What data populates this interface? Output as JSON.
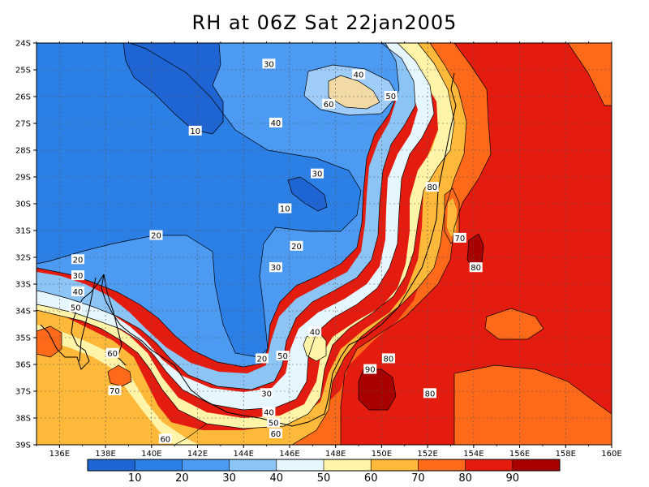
{
  "title": "RH at 06Z Sat 22jan2005",
  "map": {
    "lon_labels": [
      "136E",
      "138E",
      "140E",
      "142E",
      "144E",
      "146E",
      "148E",
      "150E",
      "152E",
      "154E",
      "156E",
      "158E",
      "160E"
    ],
    "lat_labels": [
      "24S",
      "25S",
      "26S",
      "27S",
      "28S",
      "29S",
      "30S",
      "31S",
      "32S",
      "33S",
      "34S",
      "35S",
      "36S",
      "37S",
      "38S",
      "39S"
    ],
    "contour_labels": [
      {
        "text": "10",
        "lon": 141.9,
        "lat": -27.3
      },
      {
        "text": "10",
        "lon": 145.8,
        "lat": -30.2
      },
      {
        "text": "20",
        "lon": 140.2,
        "lat": -31.2
      },
      {
        "text": "20",
        "lon": 136.8,
        "lat": -32.1
      },
      {
        "text": "20",
        "lon": 146.3,
        "lat": -31.6
      },
      {
        "text": "20",
        "lon": 144.8,
        "lat": -35.8
      },
      {
        "text": "30",
        "lon": 145.1,
        "lat": -24.8
      },
      {
        "text": "30",
        "lon": 147.2,
        "lat": -28.9
      },
      {
        "text": "30",
        "lon": 145.4,
        "lat": -32.4
      },
      {
        "text": "30",
        "lon": 136.8,
        "lat": -32.7
      },
      {
        "text": "30",
        "lon": 145.0,
        "lat": -37.1
      },
      {
        "text": "40",
        "lon": 149.0,
        "lat": -25.2
      },
      {
        "text": "40",
        "lon": 145.4,
        "lat": -27.0
      },
      {
        "text": "40",
        "lon": 136.8,
        "lat": -33.3
      },
      {
        "text": "40",
        "lon": 147.1,
        "lat": -34.8
      },
      {
        "text": "40",
        "lon": 145.1,
        "lat": -37.8
      },
      {
        "text": "50",
        "lon": 150.4,
        "lat": -26.0
      },
      {
        "text": "50",
        "lon": 136.7,
        "lat": -33.9
      },
      {
        "text": "50",
        "lon": 145.7,
        "lat": -35.7
      },
      {
        "text": "50",
        "lon": 145.3,
        "lat": -38.2
      },
      {
        "text": "60",
        "lon": 147.7,
        "lat": -26.3
      },
      {
        "text": "60",
        "lon": 138.3,
        "lat": -35.6
      },
      {
        "text": "60",
        "lon": 145.4,
        "lat": -38.6
      },
      {
        "text": "60",
        "lon": 140.6,
        "lat": -38.8
      },
      {
        "text": "70",
        "lon": 153.4,
        "lat": -31.3
      },
      {
        "text": "70",
        "lon": 138.4,
        "lat": -37.0
      },
      {
        "text": "80",
        "lon": 152.2,
        "lat": -29.4
      },
      {
        "text": "80",
        "lon": 154.1,
        "lat": -32.4
      },
      {
        "text": "80",
        "lon": 150.3,
        "lat": -35.8
      },
      {
        "text": "80",
        "lon": 152.1,
        "lat": -37.1
      },
      {
        "text": "90",
        "lon": 149.5,
        "lat": -36.2
      }
    ]
  },
  "colorbar": {
    "labels": [
      "10",
      "20",
      "30",
      "40",
      "50",
      "60",
      "70",
      "80",
      "90"
    ],
    "colors": [
      "#1e64d2",
      "#2b7fe5",
      "#4c9af2",
      "#8cc4f5",
      "#e6f6ff",
      "#fff4a8",
      "#ffb93a",
      "#ff6a1a",
      "#e41c10",
      "#a80000"
    ]
  },
  "colors": {
    "rh_0_10": "#1e64d2",
    "rh_10_20": "#2b7fe5",
    "rh_20_30": "#4c9af2",
    "rh_30_40": "#8cc4f5",
    "rh_40_50": "#e6f6ff",
    "rh_50_60": "#fff4a8",
    "rh_60_70": "#ffb93a",
    "rh_70_80": "#ff6a1a",
    "rh_80_90": "#e41c10",
    "rh_90_100": "#a80000"
  }
}
